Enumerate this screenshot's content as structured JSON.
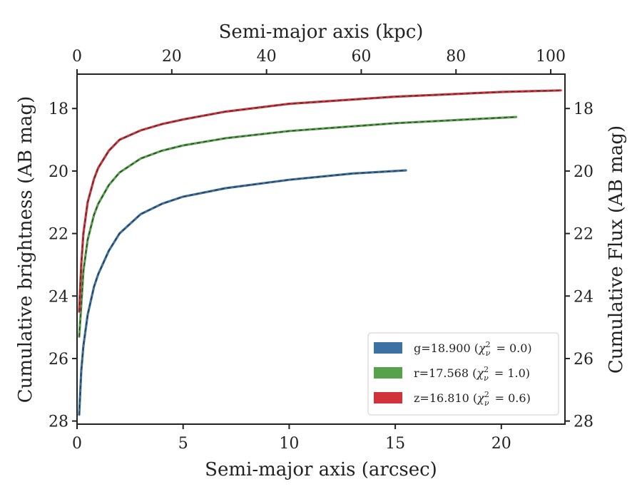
{
  "chart_data": {
    "type": "line",
    "xlabel_bottom": "Semi-major axis (arcsec)",
    "xlabel_top": "Semi-major axis (kpc)",
    "ylabel_left": "Cumulative brightness (AB mag)",
    "ylabel_right": "Cumulative Flux (AB mag)",
    "xlim": [
      0,
      23
    ],
    "ylim": [
      28.1,
      16.9
    ],
    "top_xlim": [
      0,
      103
    ],
    "x_ticks": [
      "0",
      "5",
      "10",
      "15",
      "20"
    ],
    "x_tick_values": [
      0,
      5,
      10,
      15,
      20
    ],
    "top_ticks": [
      "0",
      "20",
      "40",
      "60",
      "80",
      "100"
    ],
    "top_tick_values": [
      0,
      20,
      40,
      60,
      80,
      100
    ],
    "y_ticks": [
      "18",
      "20",
      "22",
      "24",
      "26",
      "28"
    ],
    "y_tick_values": [
      18,
      20,
      22,
      24,
      26,
      28
    ],
    "legend_position": "lower-right",
    "grid": false,
    "series": [
      {
        "name": "g=18.900",
        "label_chi": "0.0",
        "color": "#3b72a3",
        "x": [
          0.1,
          0.2,
          0.3,
          0.5,
          0.8,
          1.0,
          1.5,
          2.0,
          3.0,
          4.0,
          5.0,
          7.0,
          10.0,
          13.0,
          15.5
        ],
        "y": [
          27.8,
          26.4,
          25.6,
          24.6,
          23.7,
          23.3,
          22.55,
          22.0,
          21.38,
          21.05,
          20.82,
          20.55,
          20.28,
          20.08,
          19.98
        ]
      },
      {
        "name": "r=17.568",
        "label_chi": "1.0",
        "color": "#55a24a",
        "x": [
          0.1,
          0.2,
          0.3,
          0.5,
          0.8,
          1.0,
          1.5,
          2.0,
          3.0,
          4.0,
          5.0,
          7.0,
          10.0,
          15.0,
          20.7
        ],
        "y": [
          25.3,
          24.3,
          23.2,
          22.2,
          21.4,
          21.05,
          20.45,
          20.05,
          19.6,
          19.35,
          19.18,
          18.95,
          18.72,
          18.47,
          18.27
        ]
      },
      {
        "name": "z=16.810",
        "label_chi": "0.6",
        "color": "#d0343a",
        "x": [
          0.1,
          0.2,
          0.3,
          0.5,
          0.8,
          1.0,
          1.5,
          2.0,
          3.0,
          4.0,
          5.0,
          7.0,
          10.0,
          15.0,
          20.0,
          22.8
        ],
        "y": [
          24.5,
          23.0,
          22.0,
          21.0,
          20.25,
          19.9,
          19.35,
          19.0,
          18.7,
          18.5,
          18.35,
          18.1,
          17.85,
          17.62,
          17.47,
          17.42
        ]
      }
    ]
  }
}
